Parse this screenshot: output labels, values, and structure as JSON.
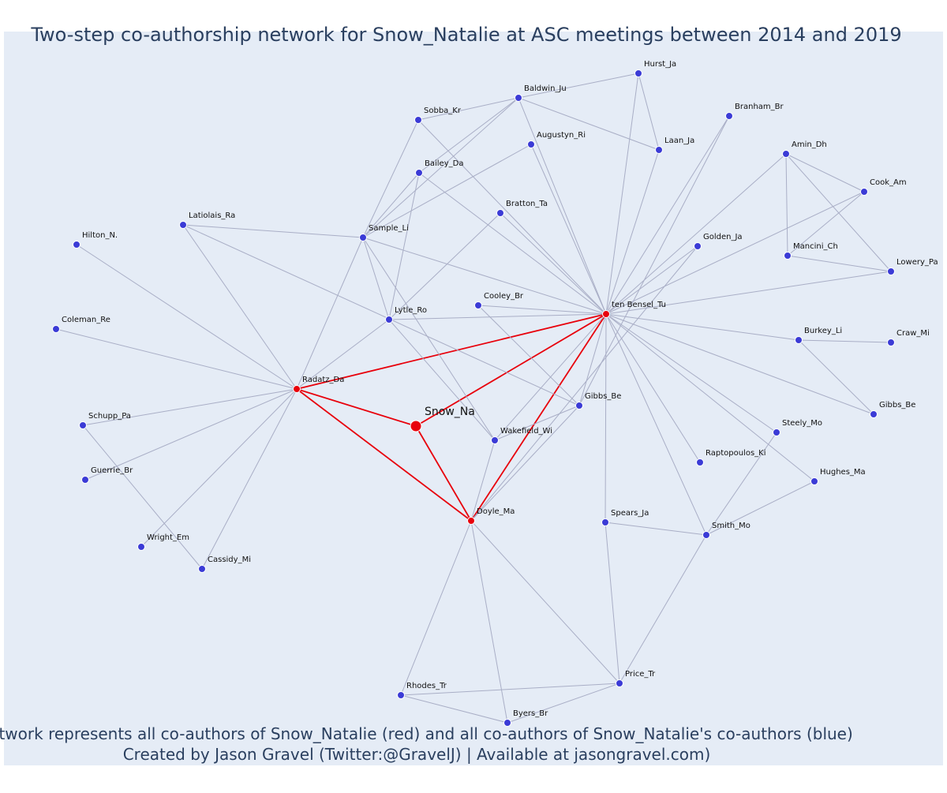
{
  "title": "Two-step co-authorship network for Snow_Natalie at ASC meetings between 2014 and 2019",
  "footer": {
    "line1": "Network represents all co-authors of Snow_Natalie (red) and all co-authors of Snow_Natalie's co-authors (blue)",
    "line2": "Created by Jason Gravel (Twitter:@GravelJ) | Available at jasongravel.com)"
  },
  "colors": {
    "background": "#e5ecf6",
    "text": "#2a3f5f",
    "edge": "#a9aec6",
    "ego_edge": "#e8000b",
    "coauthor_node": "#e8000b",
    "second_step_node": "#3b3bd6"
  },
  "network": {
    "ego": "Snow_Na",
    "nodes": [
      {
        "id": "snow",
        "label": "Snow_Na",
        "group": "ego"
      },
      {
        "id": "radatz",
        "label": "Radatz_Da",
        "group": "coauthor"
      },
      {
        "id": "doyle",
        "label": "Doyle_Ma",
        "group": "coauthor"
      },
      {
        "id": "tenbensel",
        "label": "ten Bensel_Tu",
        "group": "coauthor"
      },
      {
        "id": "hurst",
        "label": "Hurst_Ja",
        "group": "second"
      },
      {
        "id": "baldwin",
        "label": "Baldwin_Ju",
        "group": "second"
      },
      {
        "id": "sobba",
        "label": "Sobba_Kr",
        "group": "second"
      },
      {
        "id": "branham",
        "label": "Branham_Br",
        "group": "second"
      },
      {
        "id": "augustyn",
        "label": "Augustyn_Ri",
        "group": "second"
      },
      {
        "id": "laan",
        "label": "Laan_Ja",
        "group": "second"
      },
      {
        "id": "amin",
        "label": "Amin_Dh",
        "group": "second"
      },
      {
        "id": "bailey",
        "label": "Bailey_Da",
        "group": "second"
      },
      {
        "id": "cook",
        "label": "Cook_Am",
        "group": "second"
      },
      {
        "id": "bratton",
        "label": "Bratton_Ta",
        "group": "second"
      },
      {
        "id": "latiolais",
        "label": "Latiolais_Ra",
        "group": "second"
      },
      {
        "id": "sample",
        "label": "Sample_Li",
        "group": "second"
      },
      {
        "id": "golden",
        "label": "Golden_Ja",
        "group": "second"
      },
      {
        "id": "hilton",
        "label": "Hilton_N.",
        "group": "second"
      },
      {
        "id": "mancini",
        "label": "Mancini_Ch",
        "group": "second"
      },
      {
        "id": "lowery",
        "label": "Lowery_Pa",
        "group": "second"
      },
      {
        "id": "cooley",
        "label": "Cooley_Br",
        "group": "second"
      },
      {
        "id": "lytle",
        "label": "Lytle_Ro",
        "group": "second"
      },
      {
        "id": "coleman",
        "label": "Coleman_Re",
        "group": "second"
      },
      {
        "id": "burkey",
        "label": "Burkey_Li",
        "group": "second"
      },
      {
        "id": "craw",
        "label": "Craw_Mi",
        "group": "second"
      },
      {
        "id": "gibbs1",
        "label": "Gibbs_Be",
        "group": "second"
      },
      {
        "id": "gibbs2",
        "label": "Gibbs_Be",
        "group": "second"
      },
      {
        "id": "schupp",
        "label": "Schupp_Pa",
        "group": "second"
      },
      {
        "id": "steely",
        "label": "Steely_Mo",
        "group": "second"
      },
      {
        "id": "wakefield",
        "label": "Wakefield_Wi",
        "group": "second"
      },
      {
        "id": "raptopoulos",
        "label": "Raptopoulos_Ki",
        "group": "second"
      },
      {
        "id": "guerrie",
        "label": "Guerrie_Br",
        "group": "second"
      },
      {
        "id": "hughes",
        "label": "Hughes_Ma",
        "group": "second"
      },
      {
        "id": "spears",
        "label": "Spears_Ja",
        "group": "second"
      },
      {
        "id": "smith",
        "label": "Smith_Mo",
        "group": "second"
      },
      {
        "id": "wright",
        "label": "Wright_Em",
        "group": "second"
      },
      {
        "id": "cassidy",
        "label": "Cassidy_Mi",
        "group": "second"
      },
      {
        "id": "price",
        "label": "Price_Tr",
        "group": "second"
      },
      {
        "id": "rhodes",
        "label": "Rhodes_Tr",
        "group": "second"
      },
      {
        "id": "byers",
        "label": "Byers_Br",
        "group": "second"
      }
    ],
    "edges": [
      [
        "snow",
        "radatz"
      ],
      [
        "snow",
        "doyle"
      ],
      [
        "snow",
        "tenbensel"
      ],
      [
        "radatz",
        "doyle"
      ],
      [
        "radatz",
        "tenbensel"
      ],
      [
        "doyle",
        "tenbensel"
      ],
      [
        "hurst",
        "baldwin"
      ],
      [
        "hurst",
        "laan"
      ],
      [
        "hurst",
        "tenbensel"
      ],
      [
        "baldwin",
        "sobba"
      ],
      [
        "baldwin",
        "laan"
      ],
      [
        "baldwin",
        "sample"
      ],
      [
        "baldwin",
        "tenbensel"
      ],
      [
        "baldwin",
        "bailey"
      ],
      [
        "sobba",
        "sample"
      ],
      [
        "sobba",
        "tenbensel"
      ],
      [
        "augustyn",
        "sample"
      ],
      [
        "augustyn",
        "tenbensel"
      ],
      [
        "bailey",
        "sample"
      ],
      [
        "bailey",
        "lytle"
      ],
      [
        "bailey",
        "tenbensel"
      ],
      [
        "laan",
        "tenbensel"
      ],
      [
        "branham",
        "tenbensel"
      ],
      [
        "branham",
        "gibbs1"
      ],
      [
        "amin",
        "mancini"
      ],
      [
        "amin",
        "cook"
      ],
      [
        "amin",
        "lowery"
      ],
      [
        "amin",
        "tenbensel"
      ],
      [
        "cook",
        "mancini"
      ],
      [
        "cook",
        "tenbensel"
      ],
      [
        "mancini",
        "lowery"
      ],
      [
        "lowery",
        "tenbensel"
      ],
      [
        "golden",
        "tenbensel"
      ],
      [
        "golden",
        "doyle"
      ],
      [
        "bratton",
        "tenbensel"
      ],
      [
        "bratton",
        "lytle"
      ],
      [
        "latiolais",
        "sample"
      ],
      [
        "latiolais",
        "radatz"
      ],
      [
        "latiolais",
        "gibbs1"
      ],
      [
        "sample",
        "lytle"
      ],
      [
        "sample",
        "radatz"
      ],
      [
        "sample",
        "tenbensel"
      ],
      [
        "sample",
        "wakefield"
      ],
      [
        "lytle",
        "tenbensel"
      ],
      [
        "lytle",
        "radatz"
      ],
      [
        "lytle",
        "wakefield"
      ],
      [
        "cooley",
        "tenbensel"
      ],
      [
        "cooley",
        "gibbs1"
      ],
      [
        "hilton",
        "radatz"
      ],
      [
        "coleman",
        "radatz"
      ],
      [
        "schupp",
        "radatz"
      ],
      [
        "schupp",
        "cassidy"
      ],
      [
        "guerrie",
        "radatz"
      ],
      [
        "wright",
        "radatz"
      ],
      [
        "cassidy",
        "radatz"
      ],
      [
        "wakefield",
        "doyle"
      ],
      [
        "wakefield",
        "gibbs1"
      ],
      [
        "wakefield",
        "tenbensel"
      ],
      [
        "gibbs1",
        "doyle"
      ],
      [
        "gibbs1",
        "tenbensel"
      ],
      [
        "burkey",
        "tenbensel"
      ],
      [
        "burkey",
        "craw"
      ],
      [
        "burkey",
        "gibbs2"
      ],
      [
        "gibbs2",
        "tenbensel"
      ],
      [
        "steely",
        "tenbensel"
      ],
      [
        "steely",
        "smith"
      ],
      [
        "raptopoulos",
        "tenbensel"
      ],
      [
        "hughes",
        "tenbensel"
      ],
      [
        "hughes",
        "smith"
      ],
      [
        "spears",
        "tenbensel"
      ],
      [
        "spears",
        "smith"
      ],
      [
        "spears",
        "price"
      ],
      [
        "smith",
        "tenbensel"
      ],
      [
        "smith",
        "price"
      ],
      [
        "price",
        "doyle"
      ],
      [
        "price",
        "rhodes"
      ],
      [
        "price",
        "byers"
      ],
      [
        "rhodes",
        "doyle"
      ],
      [
        "rhodes",
        "byers"
      ],
      [
        "byers",
        "doyle"
      ]
    ]
  }
}
